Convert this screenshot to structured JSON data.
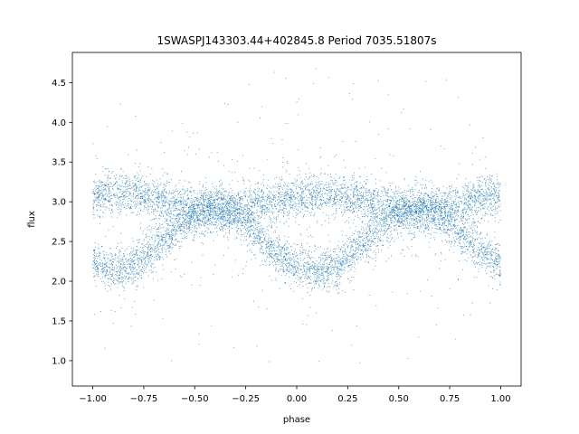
{
  "chart_data": {
    "type": "scatter",
    "title": "1SWASPJ143303.44+402845.8 Period 7035.51807s",
    "xlabel": "phase",
    "ylabel": "flux",
    "xlim": [
      -1.1,
      1.1
    ],
    "ylim": [
      0.68,
      4.88
    ],
    "xticks": [
      -1.0,
      -0.75,
      -0.5,
      -0.25,
      0.0,
      0.25,
      0.5,
      0.75,
      1.0
    ],
    "xtick_labels": [
      "−1.00",
      "−0.75",
      "−0.50",
      "−0.25",
      "0.00",
      "0.25",
      "0.50",
      "0.75",
      "1.00"
    ],
    "yticks": [
      1.0,
      1.5,
      2.0,
      2.5,
      3.0,
      3.5,
      4.0,
      4.5
    ],
    "ytick_labels": [
      "1.0",
      "1.5",
      "2.0",
      "2.5",
      "3.0",
      "3.5",
      "4.0",
      "4.5"
    ],
    "grid": false,
    "marker_color": "#1f77b4",
    "series": [
      {
        "branch": "upper",
        "x": [
          -1.0,
          -0.9,
          -0.8,
          -0.7,
          -0.6,
          -0.5,
          -0.4,
          -0.3,
          -0.2,
          -0.1,
          0.0,
          0.1,
          0.2,
          0.3,
          0.4,
          0.5,
          0.6,
          0.7,
          0.8,
          0.9,
          1.0
        ],
        "y": [
          3.08,
          3.1,
          3.1,
          3.05,
          2.97,
          2.93,
          2.92,
          2.94,
          2.98,
          3.02,
          3.06,
          3.08,
          3.08,
          3.05,
          2.97,
          2.92,
          2.9,
          2.92,
          2.98,
          3.05,
          3.08
        ]
      },
      {
        "branch": "lower",
        "x": [
          -1.0,
          -0.9,
          -0.8,
          -0.7,
          -0.6,
          -0.5,
          -0.4,
          -0.3,
          -0.2,
          -0.1,
          0.0,
          0.1,
          0.2,
          0.3,
          0.4,
          0.5,
          0.6,
          0.7,
          0.8,
          0.9,
          1.0
        ],
        "y": [
          2.22,
          2.15,
          2.2,
          2.42,
          2.65,
          2.83,
          2.9,
          2.83,
          2.6,
          2.35,
          2.18,
          2.13,
          2.18,
          2.42,
          2.65,
          2.83,
          2.88,
          2.82,
          2.6,
          2.38,
          2.22
        ]
      }
    ]
  }
}
